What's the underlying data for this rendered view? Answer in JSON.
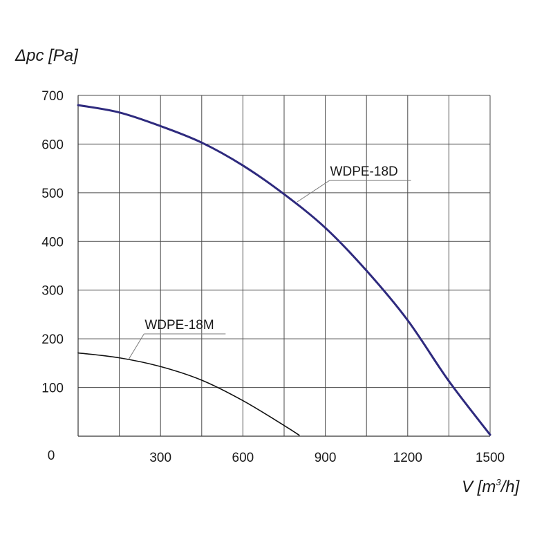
{
  "chart_data": {
    "type": "line",
    "ylabel": "Δpc [Pa]",
    "xlabel_main": "V [m",
    "xlabel_sup": "3",
    "xlabel_tail": "/h]",
    "origin_label": "0",
    "xlim": [
      0,
      1500
    ],
    "ylim": [
      0,
      700
    ],
    "x_gridlines": [
      150,
      300,
      450,
      600,
      750,
      900,
      1050,
      1200,
      1350,
      1500
    ],
    "y_gridlines": [
      100,
      200,
      300,
      400,
      500,
      600,
      700
    ],
    "x_ticks": [
      300,
      600,
      900,
      1200,
      1500
    ],
    "y_ticks": [
      100,
      200,
      300,
      400,
      500,
      600,
      700
    ],
    "grid": true,
    "series": [
      {
        "name": "WDPE-18D",
        "color": "#2e2a7e",
        "x": [
          0,
          150,
          300,
          450,
          600,
          750,
          900,
          1050,
          1200,
          1350,
          1500
        ],
        "y": [
          680,
          665,
          637,
          603,
          556,
          497,
          428,
          340,
          238,
          113,
          3
        ],
        "label_at": [
          915,
          545
        ]
      },
      {
        "name": "WDPE-18M",
        "color": "#111111",
        "x": [
          0,
          150,
          300,
          450,
          600,
          750,
          805
        ],
        "y": [
          171,
          161,
          143,
          115,
          73,
          22,
          2
        ],
        "label_at": [
          240,
          230
        ]
      }
    ]
  }
}
